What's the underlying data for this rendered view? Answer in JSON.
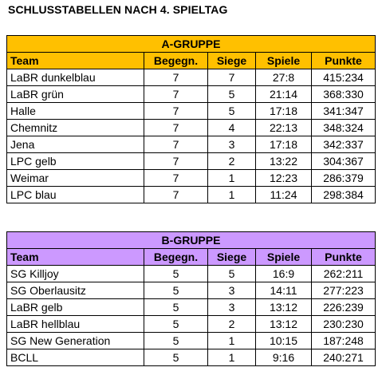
{
  "page_title": "SCHLUSSTABELLEN NACH 4. SPIELTAG",
  "colors": {
    "group_a_header": "#ffc000",
    "group_b_header": "#cc99ff"
  },
  "columns": [
    "Team",
    "Begegn.",
    "Siege",
    "Spiele",
    "Punkte"
  ],
  "group_a": {
    "title": "A-GRUPPE",
    "rows": [
      [
        "LaBR dunkelblau",
        "7",
        "7",
        "27:8",
        "415:234"
      ],
      [
        "LaBR grün",
        "7",
        "5",
        "21:14",
        "368:330"
      ],
      [
        "Halle",
        "7",
        "5",
        "17:18",
        "341:347"
      ],
      [
        "Chemnitz",
        "7",
        "4",
        "22:13",
        "348:324"
      ],
      [
        "Jena",
        "7",
        "3",
        "17:18",
        "342:337"
      ],
      [
        "LPC gelb",
        "7",
        "2",
        "13:22",
        "304:367"
      ],
      [
        "Weimar",
        "7",
        "1",
        "12:23",
        "286:379"
      ],
      [
        "LPC blau",
        "7",
        "1",
        "11:24",
        "298:384"
      ]
    ]
  },
  "group_b": {
    "title": "B-GRUPPE",
    "rows": [
      [
        "SG Killjoy",
        "5",
        "5",
        "16:9",
        "262:211"
      ],
      [
        "SG Oberlausitz",
        "5",
        "3",
        "14:11",
        "277:223"
      ],
      [
        "LaBR gelb",
        "5",
        "3",
        "13:12",
        "226:239"
      ],
      [
        "LaBR hellblau",
        "5",
        "2",
        "13:12",
        "230:230"
      ],
      [
        "SG New Generation",
        "5",
        "1",
        "10:15",
        "187:248"
      ],
      [
        "BCLL",
        "5",
        "1",
        "9:16",
        "240:271"
      ]
    ]
  }
}
